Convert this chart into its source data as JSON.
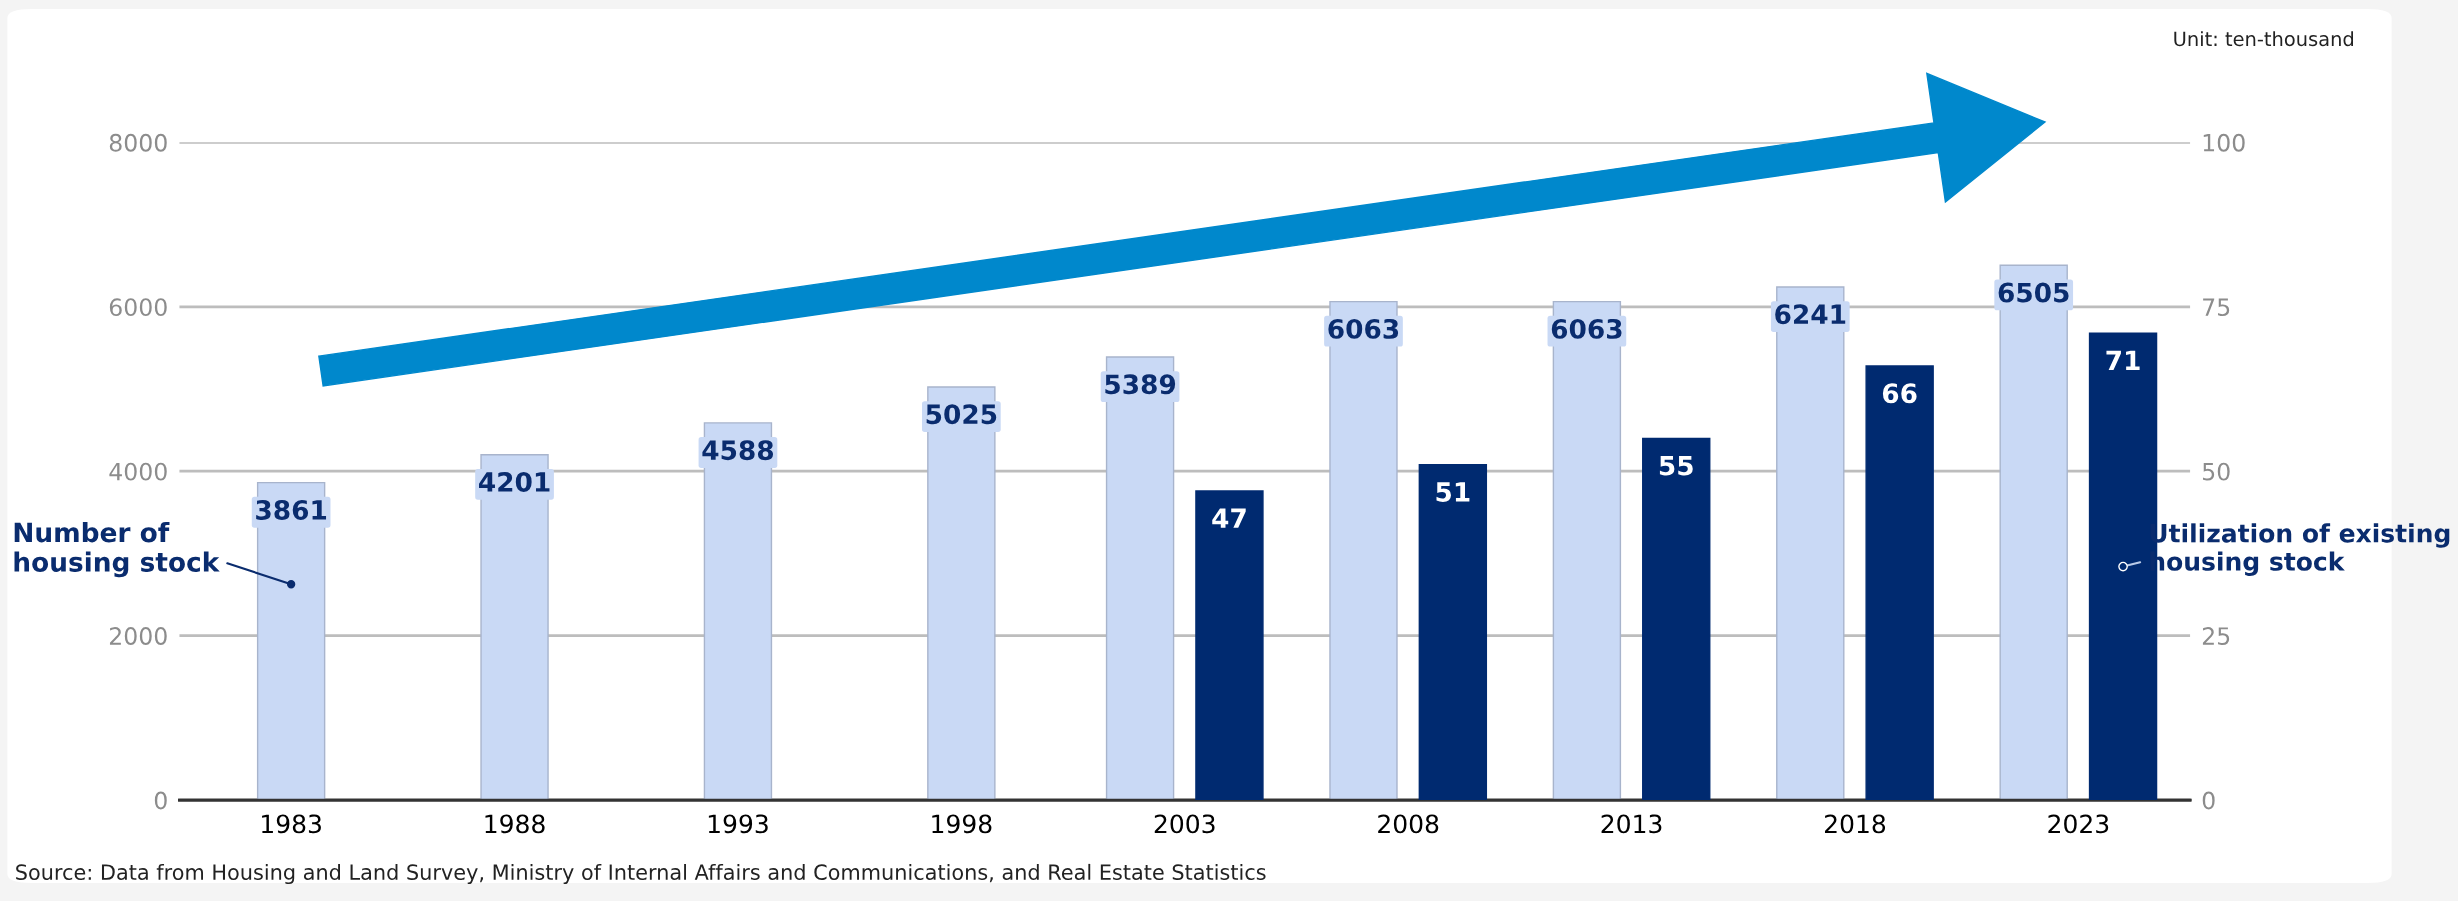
{
  "chart_data": {
    "type": "bar",
    "categories": [
      "1983",
      "1988",
      "1993",
      "1998",
      "2003",
      "2008",
      "2013",
      "2018",
      "2023"
    ],
    "series": [
      {
        "name": "Number of housing stock",
        "color": "#c9d9f5",
        "values": [
          3861,
          4201,
          4588,
          5025,
          5389,
          6063,
          6063,
          6241,
          6505
        ]
      },
      {
        "name": "Utilization of existing housing stock",
        "color": "#002a70",
        "axis": "y2",
        "values": [
          null,
          null,
          null,
          null,
          47,
          51,
          55,
          66,
          71
        ]
      }
    ],
    "ylim": [
      0,
      8000
    ],
    "yticks": [
      0,
      2000,
      4000,
      6000,
      8000
    ],
    "y2lim": [
      0,
      100
    ],
    "y2ticks": [
      0,
      25,
      50,
      75,
      100
    ],
    "grid": "y",
    "data_labels": true,
    "annotations": [
      "Unit: ten-thousand",
      "Source: Data from Housing and Land Survey, Ministry of Internal Affairs and Communications, and Real Estate Statistics"
    ]
  }
}
